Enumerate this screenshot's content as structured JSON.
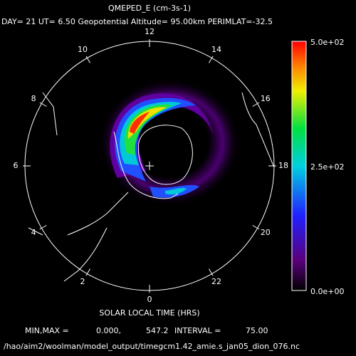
{
  "header": {
    "title": "QMEPED_E (cm-3s-1)",
    "subtitle": "DAY= 21 UT= 6.50 Geopotential Altitude= 95.00km PERIMLAT=-32.5"
  },
  "dial": {
    "hours": [
      "12",
      "14",
      "16",
      "18",
      "20",
      "22",
      "0",
      "2",
      "4",
      "6",
      "8",
      "10"
    ],
    "axis_label": "SOLAR LOCAL TIME (HRS)"
  },
  "colorbar": {
    "labels": [
      "5.0e+02",
      "2.5e+02",
      "0.0e+00"
    ]
  },
  "footer": {
    "minmax_label": "MIN,MAX =",
    "min": "0.000,",
    "max": "547.2",
    "interval_label": "INTERVAL =",
    "interval": "75.00",
    "file": "/hao/aim2/woolman/model_output/timegcm1.42_amie.s_jan05_dion_076.nc"
  }
}
